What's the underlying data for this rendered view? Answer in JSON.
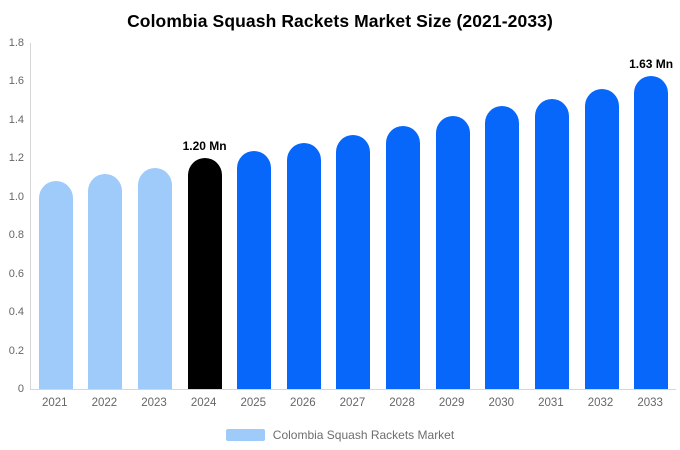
{
  "chart_data": {
    "type": "bar",
    "title": "Colombia Squash Rackets Market Size (2021-2033)",
    "categories": [
      "2021",
      "2022",
      "2023",
      "2024",
      "2025",
      "2026",
      "2027",
      "2028",
      "2029",
      "2030",
      "2031",
      "2032",
      "2033"
    ],
    "values": [
      1.08,
      1.12,
      1.15,
      1.2,
      1.24,
      1.28,
      1.32,
      1.37,
      1.42,
      1.47,
      1.51,
      1.56,
      1.63
    ],
    "unit": "Mn",
    "bar_colors": [
      "#9FCBFA",
      "#9FCBFA",
      "#9FCBFA",
      "#000000",
      "#0667FA",
      "#0667FA",
      "#0667FA",
      "#0667FA",
      "#0667FA",
      "#0667FA",
      "#0667FA",
      "#0667FA",
      "#0667FA"
    ],
    "annotations": [
      {
        "category": "2024",
        "text": "1.20 Mn"
      },
      {
        "category": "2033",
        "text": "1.63 Mn"
      }
    ],
    "ylim": [
      0,
      1.8
    ],
    "yticks": [
      "0",
      "0.2",
      "0.4",
      "0.6",
      "0.8",
      "1.0",
      "1.2",
      "1.4",
      "1.6",
      "1.8"
    ],
    "xlabel": "",
    "ylabel": "",
    "grid": false,
    "legend_position": "bottom"
  },
  "legend": {
    "label": "Colombia Squash Rackets Market",
    "swatch_color": "#9FCBFA"
  },
  "colors": {
    "title_text": "#000000",
    "annotation_text": "#000000",
    "axis_line": "#D6D6D6",
    "y_tick_text": "#666666",
    "x_tick_text": "#666666",
    "legend_text": "#6E6E6E",
    "background": "#FFFFFF",
    "historical_bar": "#9FCBFA",
    "base_year_bar": "#000000",
    "forecast_bar": "#0667FA"
  }
}
